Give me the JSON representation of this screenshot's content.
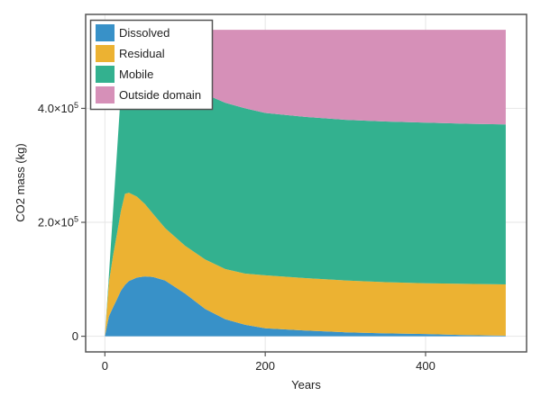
{
  "chart_data": {
    "type": "area",
    "stacked": true,
    "title": "",
    "xlabel": "Years",
    "ylabel": "CO2 mass (kg)",
    "xlim": [
      -24,
      526
    ],
    "ylim": [
      -27500,
      565000
    ],
    "grid": true,
    "legend_position": "top-left",
    "x_ticks": [
      {
        "value": 0,
        "label": "0"
      },
      {
        "value": 200,
        "label": "200"
      },
      {
        "value": 400,
        "label": "400"
      }
    ],
    "y_ticks": [
      {
        "value": 0,
        "label": "0",
        "exp": ""
      },
      {
        "value": 200000,
        "label": "2.0×10",
        "exp": "5"
      },
      {
        "value": 400000,
        "label": "4.0×10",
        "exp": "5"
      }
    ],
    "x": [
      0,
      5,
      10,
      15,
      20,
      25,
      30,
      40,
      50,
      60,
      75,
      100,
      125,
      150,
      175,
      200,
      250,
      300,
      350,
      400,
      450,
      500
    ],
    "series": [
      {
        "name": "Dissolved",
        "color": "#3891c8",
        "values": [
          0,
          35000,
          50000,
          65000,
          80000,
          90000,
          97000,
          103000,
          105000,
          104000,
          98000,
          75000,
          48000,
          30000,
          20000,
          14000,
          10000,
          7000,
          5000,
          4000,
          2000,
          1000
        ]
      },
      {
        "name": "Residual",
        "color": "#ecb232",
        "values": [
          0,
          60000,
          90000,
          115000,
          140000,
          160000,
          155000,
          142000,
          127000,
          111000,
          92000,
          84000,
          87000,
          88000,
          90000,
          93000,
          92000,
          91000,
          90000,
          89000,
          90000,
          90000
        ]
      },
      {
        "name": "Mobile",
        "color": "#33b18f",
        "values": [
          0,
          12000,
          75000,
          142000,
          210000,
          288000,
          283000,
          280000,
          278000,
          280000,
          285000,
          291000,
          290000,
          292000,
          290000,
          285000,
          283000,
          282000,
          282000,
          282000,
          281000,
          281000
        ]
      },
      {
        "name": "Outside domain",
        "color": "#d690b8",
        "values": [
          0,
          0,
          0,
          0,
          0,
          0,
          3000,
          13000,
          28000,
          43000,
          63000,
          88000,
          113000,
          128000,
          138000,
          146000,
          153000,
          158000,
          161000,
          163000,
          165000,
          166000
        ]
      }
    ]
  }
}
